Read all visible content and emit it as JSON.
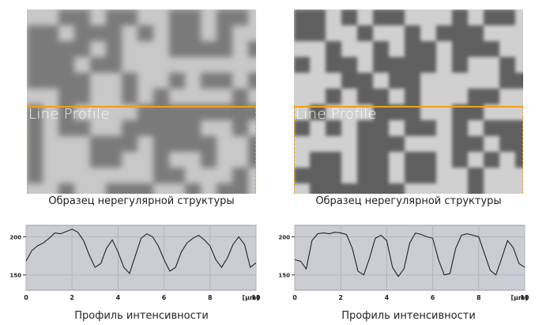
{
  "panels": [
    {
      "overlay_label": "Line Profile",
      "caption": "Образец нерегулярной структуры",
      "chart_caption": "Профиль интенсивности",
      "chart_data": {
        "type": "line",
        "x": [
          0,
          0.25,
          0.5,
          0.75,
          1,
          1.25,
          1.5,
          1.75,
          2,
          2.25,
          2.5,
          2.75,
          3,
          3.25,
          3.5,
          3.75,
          4,
          4.25,
          4.5,
          4.75,
          5,
          5.25,
          5.5,
          5.75,
          6,
          6.25,
          6.5,
          6.75,
          7,
          7.25,
          7.5,
          7.75,
          8,
          8.25,
          8.5,
          8.75,
          9,
          9.25,
          9.5,
          9.75,
          10
        ],
        "y": [
          168,
          182,
          188,
          192,
          198,
          205,
          204,
          207,
          210,
          206,
          195,
          176,
          160,
          165,
          185,
          196,
          180,
          160,
          152,
          175,
          198,
          204,
          200,
          188,
          170,
          155,
          160,
          180,
          192,
          198,
          202,
          196,
          188,
          170,
          160,
          172,
          190,
          200,
          190,
          160,
          166
        ],
        "xticks": [
          "0",
          "2",
          "4",
          "6",
          "8",
          "10"
        ],
        "yticks": [
          "200",
          "150"
        ],
        "unit": "[µm]",
        "xlim": [
          0,
          10
        ],
        "ylim": [
          130,
          215
        ],
        "grid": true
      }
    },
    {
      "overlay_label": "Line Profile",
      "caption": "Образец нерегулярной структуры",
      "chart_caption": "Профиль интенсивности",
      "chart_data": {
        "type": "line",
        "x": [
          0,
          0.25,
          0.5,
          0.75,
          1,
          1.25,
          1.5,
          1.75,
          2,
          2.25,
          2.5,
          2.75,
          3,
          3.25,
          3.5,
          3.75,
          4,
          4.25,
          4.5,
          4.75,
          5,
          5.25,
          5.5,
          5.75,
          6,
          6.25,
          6.5,
          6.75,
          7,
          7.25,
          7.5,
          7.75,
          8,
          8.25,
          8.5,
          8.75,
          9,
          9.25,
          9.5,
          9.75,
          10
        ],
        "y": [
          170,
          168,
          158,
          195,
          204,
          205,
          204,
          206,
          205,
          203,
          185,
          155,
          150,
          172,
          198,
          202,
          195,
          160,
          148,
          158,
          192,
          205,
          203,
          200,
          198,
          170,
          150,
          152,
          185,
          202,
          204,
          202,
          200,
          178,
          156,
          150,
          172,
          195,
          186,
          165,
          160
        ],
        "xticks": [
          "0",
          "2",
          "4",
          "6",
          "8",
          "10"
        ],
        "yticks": [
          "200",
          "150"
        ],
        "unit": "[µm]",
        "xlim": [
          0,
          10
        ],
        "ylim": [
          130,
          215
        ],
        "grid": true
      }
    }
  ],
  "colors": {
    "accent": "#f0a10f",
    "plot_bg": "#cccdd4",
    "plot_line": "#222222"
  }
}
